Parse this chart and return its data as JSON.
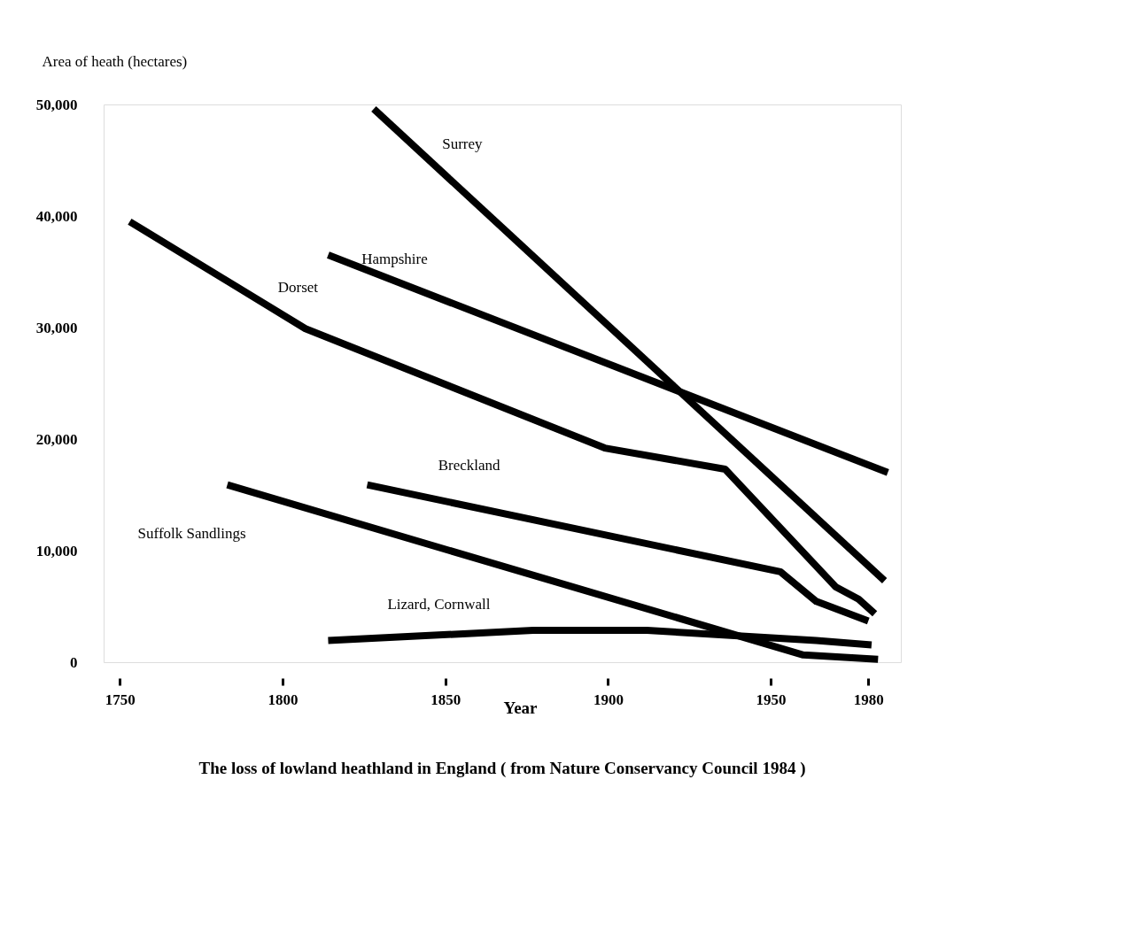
{
  "chart_data": {
    "type": "line",
    "title": "The loss of lowland heathland in England ( from Nature Conservancy Council 1984 )",
    "xlabel": "Year",
    "ylabel": "Area of heath (hectares)",
    "xlim": [
      1745,
      1990
    ],
    "ylim": [
      0,
      50000
    ],
    "xticks": [
      1750,
      1800,
      1850,
      1900,
      1950,
      1980
    ],
    "yticks": [
      0,
      {
        "value": 10000,
        "label": "10,000"
      },
      {
        "value": 20000,
        "label": "20,000"
      },
      {
        "value": 30000,
        "label": "30,000"
      },
      {
        "value": 40000,
        "label": "40,000"
      },
      {
        "value": 50000,
        "label": "50,000"
      }
    ],
    "line_style": "solid",
    "series": [
      {
        "name": "Surrey",
        "color": "#000000",
        "x": [
          1828,
          1985
        ],
        "values": [
          49600,
          7300
        ]
      },
      {
        "name": "Hampshire",
        "color": "#000000",
        "x": [
          1814,
          1986
        ],
        "values": [
          36500,
          17000
        ]
      },
      {
        "name": "Dorset",
        "color": "#000000",
        "x": [
          1753,
          1807,
          1899,
          1936,
          1970,
          1977,
          1982
        ],
        "values": [
          39500,
          29900,
          19200,
          17300,
          6750,
          5650,
          4350
        ]
      },
      {
        "name": "Breckland",
        "color": "#000000",
        "x": [
          1826,
          1953,
          1964,
          1980
        ],
        "values": [
          15900,
          8100,
          5450,
          3700
        ]
      },
      {
        "name": "Suffolk Sandlings",
        "color": "#000000",
        "x": [
          1783,
          1960,
          1983
        ],
        "values": [
          15900,
          650,
          260
        ]
      },
      {
        "name": "Lizard, Cornwall",
        "color": "#000000",
        "x": [
          1814,
          1877,
          1912,
          1964,
          1981
        ],
        "values": [
          1950,
          2850,
          2850,
          1950,
          1550
        ]
      }
    ]
  }
}
